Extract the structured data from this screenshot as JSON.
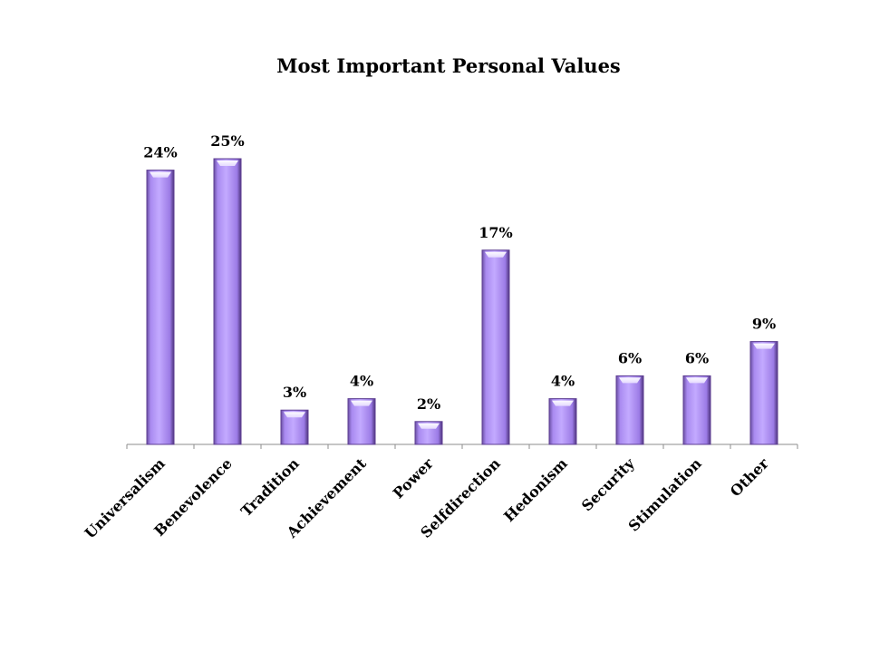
{
  "chart_data": {
    "type": "bar",
    "title": "Most Important Personal Values",
    "categories": [
      "Universalism",
      "Benevolence",
      "Tradition",
      "Achievement",
      "Power",
      "Selfdirection",
      "Hedonism",
      "Security",
      "Stimulation",
      "Other"
    ],
    "values": [
      24,
      25,
      3,
      4,
      2,
      17,
      4,
      6,
      6,
      9
    ],
    "value_labels": [
      "24%",
      "25%",
      "3%",
      "4%",
      "2%",
      "17%",
      "4%",
      "6%",
      "6%",
      "9%"
    ],
    "xlabel": "",
    "ylabel": "",
    "ylim": [
      0,
      25
    ],
    "grid": false,
    "legend": "none",
    "bar_color": "#b79cff",
    "bar_dark_color": "#5c3d91"
  }
}
